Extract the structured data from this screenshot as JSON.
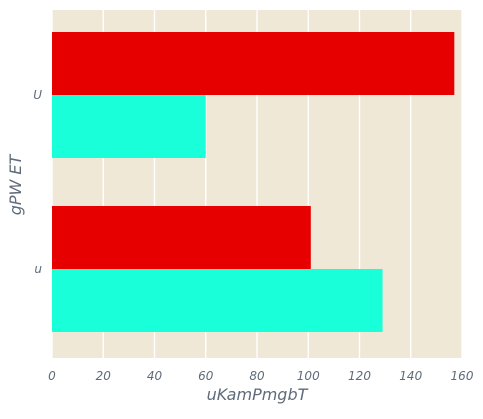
{
  "chart_data": {
    "type": "bar",
    "orientation": "horizontal",
    "categories": [
      "U",
      "u"
    ],
    "series": [
      {
        "values": [
          157,
          101
        ],
        "color": "#e60000"
      },
      {
        "values": [
          60,
          129
        ],
        "color": "#19ffd9"
      }
    ],
    "xlabel": "uKamPmgbT",
    "ylabel": "gPW  ET",
    "xlim": [
      0,
      160
    ],
    "xticks": [
      0,
      20,
      40,
      60,
      80,
      100,
      120,
      140,
      160
    ],
    "grid": "vertical",
    "background_color": "#efe8d6",
    "grid_color": "#ffffff"
  }
}
